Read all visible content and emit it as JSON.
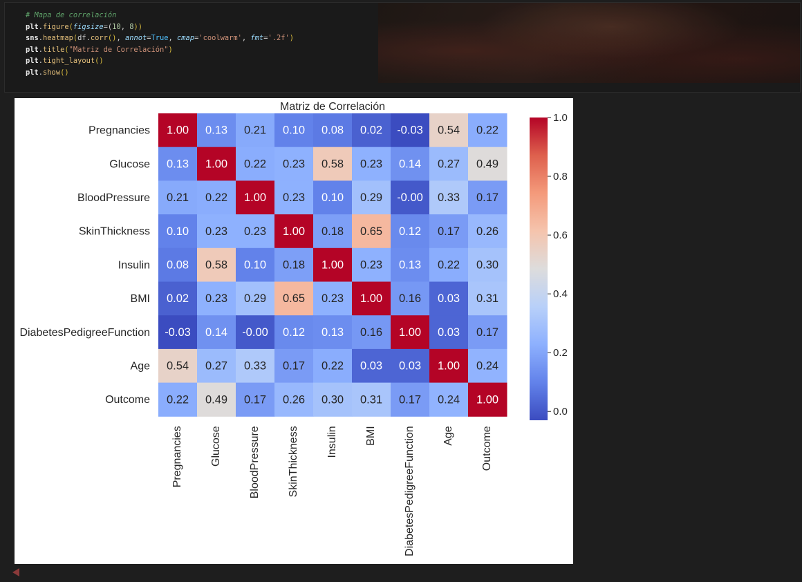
{
  "code_cell": {
    "lines": [
      [
        {
          "t": "# Mapa de correlación",
          "c": "c-comment"
        }
      ],
      [
        {
          "t": "plt",
          "c": "c-kw"
        },
        {
          "t": ".",
          "c": ""
        },
        {
          "t": "figure",
          "c": "c-fn"
        },
        {
          "t": "(",
          "c": "c-paren"
        },
        {
          "t": "figsize",
          "c": "c-param"
        },
        {
          "t": "=(",
          "c": ""
        },
        {
          "t": "10",
          "c": "c-num"
        },
        {
          "t": ", ",
          "c": ""
        },
        {
          "t": "8",
          "c": "c-num"
        },
        {
          "t": "))",
          "c": "c-paren"
        }
      ],
      [
        {
          "t": "sns",
          "c": "c-kw"
        },
        {
          "t": ".",
          "c": ""
        },
        {
          "t": "heatmap",
          "c": "c-fn"
        },
        {
          "t": "(",
          "c": "c-paren"
        },
        {
          "t": "df",
          "c": ""
        },
        {
          "t": ".",
          "c": ""
        },
        {
          "t": "corr",
          "c": "c-fn"
        },
        {
          "t": "()",
          "c": "c-paren"
        },
        {
          "t": ", ",
          "c": ""
        },
        {
          "t": "annot",
          "c": "c-param"
        },
        {
          "t": "=",
          "c": ""
        },
        {
          "t": "True",
          "c": "c-const"
        },
        {
          "t": ", ",
          "c": ""
        },
        {
          "t": "cmap",
          "c": "c-param"
        },
        {
          "t": "=",
          "c": ""
        },
        {
          "t": "'coolwarm'",
          "c": "c-str"
        },
        {
          "t": ", ",
          "c": ""
        },
        {
          "t": "fmt",
          "c": "c-param"
        },
        {
          "t": "=",
          "c": ""
        },
        {
          "t": "'.2f'",
          "c": "c-str"
        },
        {
          "t": ")",
          "c": "c-paren"
        }
      ],
      [
        {
          "t": "plt",
          "c": "c-kw"
        },
        {
          "t": ".",
          "c": ""
        },
        {
          "t": "title",
          "c": "c-fn"
        },
        {
          "t": "(",
          "c": "c-paren"
        },
        {
          "t": "\"Matriz de Correlación\"",
          "c": "c-str"
        },
        {
          "t": ")",
          "c": "c-paren"
        }
      ],
      [
        {
          "t": "plt",
          "c": "c-kw"
        },
        {
          "t": ".",
          "c": ""
        },
        {
          "t": "tight_layout",
          "c": "c-fn"
        },
        {
          "t": "()",
          "c": "c-paren"
        }
      ],
      [
        {
          "t": "plt",
          "c": "c-kw"
        },
        {
          "t": ".",
          "c": ""
        },
        {
          "t": "show",
          "c": "c-fn"
        },
        {
          "t": "()",
          "c": "c-paren"
        }
      ]
    ]
  },
  "chart_data": {
    "type": "heatmap",
    "title": "Matriz de Correlación",
    "xlabel": "",
    "ylabel": "",
    "cmap": "coolwarm",
    "categories": [
      "Pregnancies",
      "Glucose",
      "BloodPressure",
      "SkinThickness",
      "Insulin",
      "BMI",
      "DiabetesPedigreeFunction",
      "Age",
      "Outcome"
    ],
    "values": [
      [
        1.0,
        0.13,
        0.21,
        0.1,
        0.08,
        0.02,
        -0.03,
        0.54,
        0.22
      ],
      [
        0.13,
        1.0,
        0.22,
        0.23,
        0.58,
        0.23,
        0.14,
        0.27,
        0.49
      ],
      [
        0.21,
        0.22,
        1.0,
        0.23,
        0.1,
        0.29,
        -0.0,
        0.33,
        0.17
      ],
      [
        0.1,
        0.23,
        0.23,
        1.0,
        0.18,
        0.65,
        0.12,
        0.17,
        0.26
      ],
      [
        0.08,
        0.58,
        0.1,
        0.18,
        1.0,
        0.23,
        0.13,
        0.22,
        0.3
      ],
      [
        0.02,
        0.23,
        0.29,
        0.65,
        0.23,
        1.0,
        0.16,
        0.03,
        0.31
      ],
      [
        -0.03,
        0.14,
        -0.0,
        0.12,
        0.13,
        0.16,
        1.0,
        0.03,
        0.17
      ],
      [
        0.54,
        0.27,
        0.33,
        0.17,
        0.22,
        0.03,
        0.03,
        1.0,
        0.24
      ],
      [
        0.22,
        0.49,
        0.17,
        0.26,
        0.3,
        0.31,
        0.17,
        0.24,
        1.0
      ]
    ],
    "labels": [
      [
        "1.00",
        "0.13",
        "0.21",
        "0.10",
        "0.08",
        "0.02",
        "-0.03",
        "0.54",
        "0.22"
      ],
      [
        "0.13",
        "1.00",
        "0.22",
        "0.23",
        "0.58",
        "0.23",
        "0.14",
        "0.27",
        "0.49"
      ],
      [
        "0.21",
        "0.22",
        "1.00",
        "0.23",
        "0.10",
        "0.29",
        "-0.00",
        "0.33",
        "0.17"
      ],
      [
        "0.10",
        "0.23",
        "0.23",
        "1.00",
        "0.18",
        "0.65",
        "0.12",
        "0.17",
        "0.26"
      ],
      [
        "0.08",
        "0.58",
        "0.10",
        "0.18",
        "1.00",
        "0.23",
        "0.13",
        "0.22",
        "0.30"
      ],
      [
        "0.02",
        "0.23",
        "0.29",
        "0.65",
        "0.23",
        "1.00",
        "0.16",
        "0.03",
        "0.31"
      ],
      [
        "-0.03",
        "0.14",
        "-0.00",
        "0.12",
        "0.13",
        "0.16",
        "1.00",
        "0.03",
        "0.17"
      ],
      [
        "0.54",
        "0.27",
        "0.33",
        "0.17",
        "0.22",
        "0.03",
        "0.03",
        "1.00",
        "0.24"
      ],
      [
        "0.22",
        "0.49",
        "0.17",
        "0.26",
        "0.30",
        "0.31",
        "0.17",
        "0.24",
        "1.00"
      ]
    ],
    "colorbar": {
      "range": [
        -0.03,
        1.0
      ],
      "ticks": [
        0.0,
        0.2,
        0.4,
        0.6,
        0.8,
        1.0
      ],
      "tick_labels": [
        "0.0",
        "0.2",
        "0.4",
        "0.6",
        "0.8",
        "1.0"
      ]
    }
  },
  "colors": {
    "editor_bg": "#1e1e1e",
    "collapse_arrow": "#8b3a3a"
  }
}
